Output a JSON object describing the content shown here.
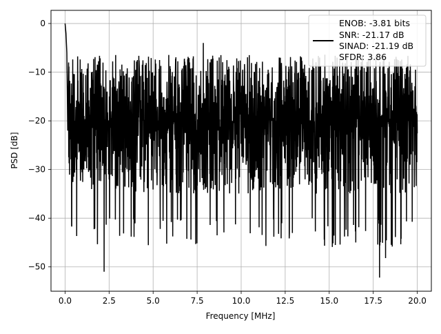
{
  "chart_data": {
    "type": "line",
    "title": "",
    "xlabel": "Frequency [MHz]",
    "ylabel": "PSD [dB]",
    "xlim": [
      -0.8,
      20.8
    ],
    "ylim": [
      -55,
      2.7
    ],
    "grid": true,
    "x_ticks": [
      0.0,
      2.5,
      5.0,
      7.5,
      10.0,
      12.5,
      15.0,
      17.5,
      20.0
    ],
    "x_tick_labels": [
      "0.0",
      "2.5",
      "5.0",
      "7.5",
      "10.0",
      "12.5",
      "15.0",
      "17.5",
      "20.0"
    ],
    "y_ticks": [
      0,
      -10,
      -20,
      -30,
      -40,
      -50
    ],
    "y_tick_labels": [
      "0",
      "−10",
      "−20",
      "−30",
      "−40",
      "−50"
    ],
    "legend": {
      "placement": "top-right",
      "entries": [
        "ENOB: -3.81 bits",
        "SNR: -21.17 dB",
        "SINAD: -21.19 dB",
        "SFDR: 3.86"
      ]
    },
    "series": [
      {
        "color": "#000000",
        "x": [
          0.0,
          0.05,
          0.1,
          0.15,
          0.2
        ],
        "values": [
          0,
          -2,
          -6,
          -22,
          -8
        ],
        "noise_band": {
          "x_range": [
            0.2,
            20.0
          ],
          "upper": [
            -20,
            -4
          ],
          "lower": [
            -20,
            -35
          ],
          "median": -20
        }
      }
    ],
    "annotated_points": [
      {
        "x": 2.22,
        "y": -51
      },
      {
        "x": 17.86,
        "y": -52.2
      },
      {
        "x": 18.2,
        "y": -48.2
      },
      {
        "x": 15.35,
        "y": -45.5
      },
      {
        "x": 7.85,
        "y": -4.0
      }
    ]
  }
}
